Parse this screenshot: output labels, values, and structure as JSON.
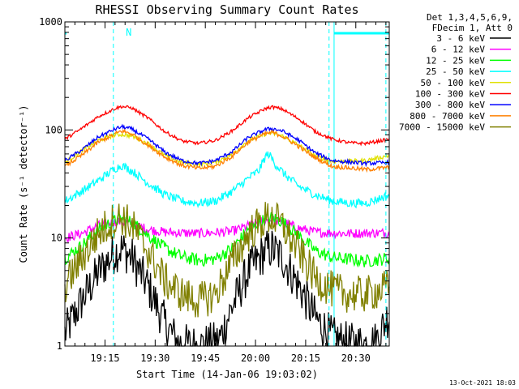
{
  "chart_data": {
    "type": "line",
    "title": "RHESSI Observing Summary Count Rates",
    "xlabel": "Start Time (14-Jan-06 19:03:02)",
    "ylabel": "Count Rate (s⁻¹ detector⁻¹)",
    "yscale": "log",
    "ylim": [
      1,
      1000
    ],
    "xlim_minutes": [
      0,
      97
    ],
    "x_ticks": [
      {
        "label": "19:15",
        "minute": 12
      },
      {
        "label": "19:30",
        "minute": 27
      },
      {
        "label": "19:45",
        "minute": 42
      },
      {
        "label": "20:00",
        "minute": 57
      },
      {
        "label": "20:15",
        "minute": 72
      },
      {
        "label": "20:30",
        "minute": 87
      }
    ],
    "y_ticks": [
      {
        "label": "1",
        "value": 1
      },
      {
        "label": "10",
        "value": 10
      },
      {
        "label": "100",
        "value": 100
      },
      {
        "label": "1000",
        "value": 1000
      }
    ],
    "legend_header": [
      "Det 1,3,4,5,6,9,",
      "FDecim 1, Att 0"
    ],
    "legend_position": "right",
    "grid": false,
    "annotations": [
      {
        "text": "N",
        "minute": 17
      },
      {
        "text": "13-Oct-2021 18:03"
      }
    ],
    "night_bands": [
      [
        0,
        0.5
      ],
      [
        80.5,
        97
      ]
    ],
    "saa_markers_minutes": [
      14.5,
      79,
      96
    ],
    "series": [
      {
        "name": "3 - 6 keV",
        "color": "#000000",
        "noise": 0.4,
        "points": [
          [
            0,
            1.3
          ],
          [
            5,
            2.6
          ],
          [
            10,
            4.8
          ],
          [
            15,
            7.4
          ],
          [
            17,
            8
          ],
          [
            20,
            6.6
          ],
          [
            25,
            3.5
          ],
          [
            30,
            1.6
          ],
          [
            34,
            1.05
          ],
          [
            40,
            1
          ],
          [
            46,
            1.1
          ],
          [
            50,
            2.3
          ],
          [
            55,
            5
          ],
          [
            60,
            7.6
          ],
          [
            62,
            8
          ],
          [
            65,
            6.6
          ],
          [
            70,
            3.6
          ],
          [
            75,
            1.8
          ],
          [
            80,
            1.2
          ],
          [
            85,
            1.05
          ],
          [
            90,
            1.05
          ],
          [
            93,
            1.1
          ],
          [
            97,
            2
          ]
        ]
      },
      {
        "name": "6 - 12 keV",
        "color": "#ff00ff",
        "noise": 0.09,
        "points": [
          [
            0,
            10
          ],
          [
            5,
            11
          ],
          [
            10,
            13
          ],
          [
            15,
            14
          ],
          [
            17,
            14.2
          ],
          [
            20,
            13.5
          ],
          [
            25,
            12
          ],
          [
            30,
            11.3
          ],
          [
            40,
            11
          ],
          [
            50,
            11.5
          ],
          [
            55,
            13
          ],
          [
            60,
            14.5
          ],
          [
            62,
            14.7
          ],
          [
            65,
            14
          ],
          [
            70,
            12.3
          ],
          [
            75,
            11.3
          ],
          [
            85,
            11
          ],
          [
            97,
            11.2
          ]
        ]
      },
      {
        "name": "12 - 25 keV",
        "color": "#00ff00",
        "noise": 0.12,
        "points": [
          [
            0,
            6.5
          ],
          [
            5,
            8.5
          ],
          [
            10,
            12
          ],
          [
            15,
            14.5
          ],
          [
            17,
            15
          ],
          [
            20,
            14
          ],
          [
            25,
            10.5
          ],
          [
            30,
            8
          ],
          [
            35,
            6.7
          ],
          [
            40,
            6.2
          ],
          [
            45,
            6.4
          ],
          [
            50,
            8
          ],
          [
            55,
            12
          ],
          [
            60,
            15
          ],
          [
            62,
            15.5
          ],
          [
            65,
            14.2
          ],
          [
            70,
            10.5
          ],
          [
            75,
            7.6
          ],
          [
            80,
            6.6
          ],
          [
            90,
            6.1
          ],
          [
            97,
            6.5
          ]
        ]
      },
      {
        "name": "25 - 50 keV",
        "color": "#00ffff",
        "noise": 0.08,
        "points": [
          [
            0,
            22
          ],
          [
            5,
            27
          ],
          [
            10,
            34
          ],
          [
            15,
            44
          ],
          [
            17,
            47
          ],
          [
            20,
            42
          ],
          [
            25,
            32
          ],
          [
            30,
            25
          ],
          [
            35,
            22
          ],
          [
            40,
            21
          ],
          [
            45,
            22
          ],
          [
            50,
            27
          ],
          [
            55,
            36
          ],
          [
            58,
            42
          ],
          [
            60,
            57
          ],
          [
            61,
            60
          ],
          [
            63,
            48
          ],
          [
            66,
            38
          ],
          [
            70,
            30
          ],
          [
            75,
            25
          ],
          [
            80,
            22
          ],
          [
            85,
            21
          ],
          [
            90,
            21
          ],
          [
            97,
            25
          ]
        ]
      },
      {
        "name": "50 - 100 keV",
        "color": "#e0e000",
        "noise": 0.04,
        "points": [
          [
            0,
            50
          ],
          [
            5,
            64
          ],
          [
            10,
            80
          ],
          [
            15,
            90
          ],
          [
            17,
            91
          ],
          [
            20,
            88
          ],
          [
            25,
            74
          ],
          [
            30,
            58
          ],
          [
            35,
            50
          ],
          [
            40,
            48
          ],
          [
            45,
            50
          ],
          [
            50,
            60
          ],
          [
            55,
            80
          ],
          [
            60,
            92
          ],
          [
            62,
            93
          ],
          [
            65,
            88
          ],
          [
            70,
            72
          ],
          [
            75,
            57
          ],
          [
            80,
            51
          ],
          [
            90,
            52
          ],
          [
            97,
            58
          ]
        ]
      },
      {
        "name": "100 - 300 keV",
        "color": "#ff0000",
        "noise": 0.03,
        "points": [
          [
            0,
            82
          ],
          [
            5,
            103
          ],
          [
            10,
            133
          ],
          [
            15,
            158
          ],
          [
            17,
            165
          ],
          [
            20,
            160
          ],
          [
            25,
            128
          ],
          [
            30,
            96
          ],
          [
            35,
            79
          ],
          [
            40,
            75
          ],
          [
            45,
            80
          ],
          [
            50,
            98
          ],
          [
            55,
            130
          ],
          [
            60,
            158
          ],
          [
            62,
            163
          ],
          [
            65,
            156
          ],
          [
            70,
            126
          ],
          [
            75,
            96
          ],
          [
            80,
            82
          ],
          [
            85,
            76
          ],
          [
            90,
            75
          ],
          [
            97,
            82
          ]
        ]
      },
      {
        "name": "300 - 800 keV",
        "color": "#0000ff",
        "noise": 0.035,
        "points": [
          [
            0,
            52
          ],
          [
            5,
            65
          ],
          [
            10,
            86
          ],
          [
            15,
            102
          ],
          [
            17,
            107
          ],
          [
            20,
            102
          ],
          [
            25,
            82
          ],
          [
            30,
            62
          ],
          [
            35,
            52
          ],
          [
            40,
            49
          ],
          [
            45,
            52
          ],
          [
            50,
            63
          ],
          [
            55,
            86
          ],
          [
            60,
            101
          ],
          [
            62,
            103
          ],
          [
            65,
            98
          ],
          [
            70,
            80
          ],
          [
            75,
            61
          ],
          [
            80,
            52
          ],
          [
            90,
            49
          ],
          [
            97,
            50
          ]
        ]
      },
      {
        "name": "800 - 7000 keV",
        "color": "#ff8000",
        "noise": 0.04,
        "points": [
          [
            0,
            46
          ],
          [
            5,
            58
          ],
          [
            10,
            77
          ],
          [
            15,
            92
          ],
          [
            17,
            98
          ],
          [
            20,
            92
          ],
          [
            25,
            72
          ],
          [
            30,
            56
          ],
          [
            35,
            47
          ],
          [
            40,
            44
          ],
          [
            45,
            46
          ],
          [
            50,
            57
          ],
          [
            55,
            78
          ],
          [
            60,
            92
          ],
          [
            62,
            95
          ],
          [
            65,
            88
          ],
          [
            70,
            70
          ],
          [
            75,
            55
          ],
          [
            80,
            46
          ],
          [
            90,
            43
          ],
          [
            97,
            45
          ]
        ]
      },
      {
        "name": "7000 - 15000 keV",
        "color": "#808000",
        "noise": 0.35,
        "points": [
          [
            0,
            3.6
          ],
          [
            5,
            6.5
          ],
          [
            10,
            11
          ],
          [
            15,
            15
          ],
          [
            17,
            15.5
          ],
          [
            20,
            13
          ],
          [
            25,
            7.5
          ],
          [
            30,
            4
          ],
          [
            35,
            3
          ],
          [
            40,
            2.6
          ],
          [
            45,
            3
          ],
          [
            50,
            6
          ],
          [
            55,
            11
          ],
          [
            60,
            15
          ],
          [
            62,
            15.5
          ],
          [
            65,
            13
          ],
          [
            70,
            7.5
          ],
          [
            75,
            4.2
          ],
          [
            80,
            3.3
          ],
          [
            85,
            3
          ],
          [
            90,
            3
          ],
          [
            97,
            3.5
          ]
        ]
      }
    ]
  }
}
